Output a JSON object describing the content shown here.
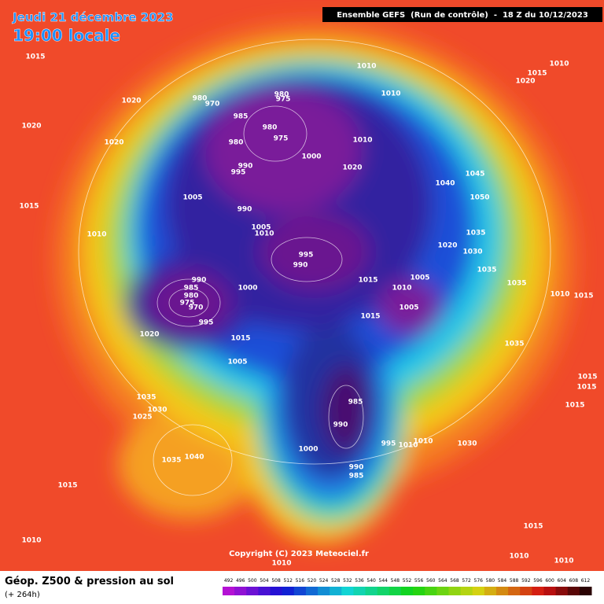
{
  "header": {
    "date": "Jeudi 21 décembre 2023",
    "time": "19:00 locale",
    "run": "Ensemble GEFS  (Run de contrôle)  -  18 Z du 10/12/2023"
  },
  "footer": {
    "title": "Géop. Z500 & pression au sol",
    "lead": "(+ 264h)",
    "copyright": "Copyright (C) 2023 Meteociel.fr"
  },
  "legend": {
    "ticks": [
      "492",
      "496",
      "500",
      "504",
      "508",
      "512",
      "516",
      "520",
      "524",
      "528",
      "532",
      "536",
      "540",
      "544",
      "548",
      "552",
      "556",
      "560",
      "564",
      "568",
      "572",
      "576",
      "580",
      "584",
      "588",
      "592",
      "596",
      "600",
      "604",
      "608",
      "612"
    ]
  },
  "map": {
    "labels": [
      "1015",
      "1020",
      "1020",
      "1020",
      "1015",
      "1010",
      "1020",
      "1035",
      "1030",
      "1025",
      "1035",
      "1040",
      "1015",
      "1010",
      "980",
      "970",
      "985",
      "980",
      "995",
      "990",
      "980",
      "975",
      "980",
      "975",
      "1000",
      "1010",
      "1010",
      "1010",
      "1020",
      "1005",
      "990",
      "1005",
      "1010",
      "995",
      "990",
      "990",
      "985",
      "980",
      "975",
      "970",
      "995",
      "1000",
      "1015",
      "1005",
      "1015",
      "1010",
      "1005",
      "1005",
      "1015",
      "985",
      "990",
      "1000",
      "995",
      "1010",
      "1010",
      "1030",
      "990",
      "985",
      "1010",
      "1015",
      "1020",
      "1045",
      "1040",
      "1050",
      "1035",
      "1020",
      "1030",
      "1035",
      "1035",
      "1010",
      "1015",
      "1035",
      "1015",
      "1015",
      "1015",
      "1015",
      "1010",
      "1010",
      "1010"
    ]
  }
}
